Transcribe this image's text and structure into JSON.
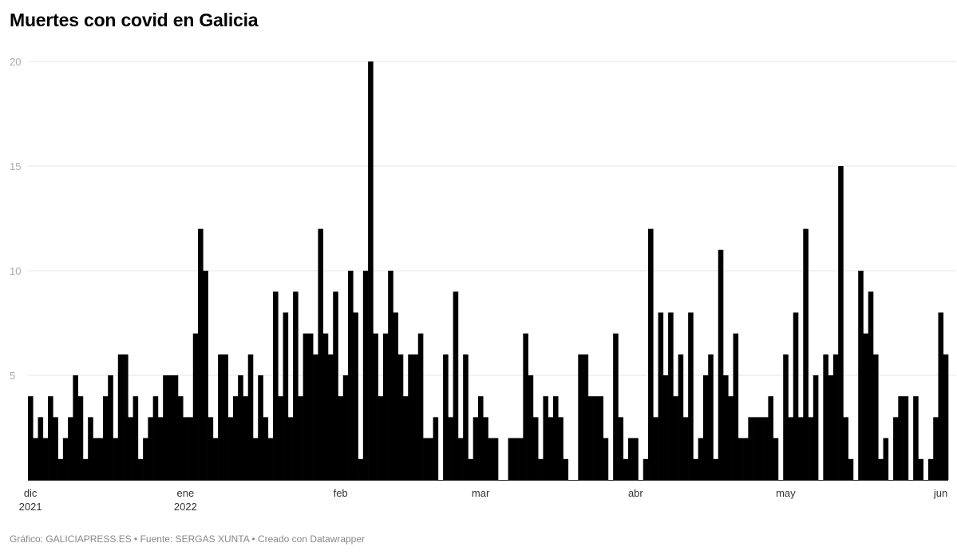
{
  "header": {
    "title": "Muertes con covid en Galicia"
  },
  "footer": {
    "text": "Gráfico: GALICIAPRESS.ES • Fuente: SERGAS XUNTA • Creado con Datawrapper"
  },
  "colors": {
    "bar": "#000000",
    "grid": "#e6e6e6",
    "axis": "#333333"
  },
  "chart_data": {
    "type": "bar",
    "title": "Muertes con covid en Galicia",
    "xlabel": "",
    "ylabel": "",
    "ylim": [
      0,
      20
    ],
    "grid": true,
    "yticks": [
      "5",
      "10",
      "15",
      "20"
    ],
    "xticks": [
      {
        "date": "2021-12-01",
        "label": "dic",
        "sublabel": "2021"
      },
      {
        "date": "2022-01-01",
        "label": "ene",
        "sublabel": "2022"
      },
      {
        "date": "2022-02-01",
        "label": "feb",
        "sublabel": ""
      },
      {
        "date": "2022-03-01",
        "label": "mar",
        "sublabel": ""
      },
      {
        "date": "2022-04-01",
        "label": "abr",
        "sublabel": ""
      },
      {
        "date": "2022-05-01",
        "label": "may",
        "sublabel": ""
      },
      {
        "date": "2022-06-01",
        "label": "jun",
        "sublabel": ""
      }
    ],
    "x": [
      "2021-12-01",
      "2021-12-02",
      "2021-12-03",
      "2021-12-04",
      "2021-12-05",
      "2021-12-06",
      "2021-12-07",
      "2021-12-08",
      "2021-12-09",
      "2021-12-10",
      "2021-12-11",
      "2021-12-12",
      "2021-12-13",
      "2021-12-14",
      "2021-12-15",
      "2021-12-16",
      "2021-12-17",
      "2021-12-18",
      "2021-12-19",
      "2021-12-20",
      "2021-12-21",
      "2021-12-22",
      "2021-12-23",
      "2021-12-24",
      "2021-12-25",
      "2021-12-26",
      "2021-12-27",
      "2021-12-28",
      "2021-12-29",
      "2021-12-30",
      "2021-12-31",
      "2022-01-01",
      "2022-01-02",
      "2022-01-03",
      "2022-01-04",
      "2022-01-05",
      "2022-01-06",
      "2022-01-07",
      "2022-01-08",
      "2022-01-09",
      "2022-01-10",
      "2022-01-11",
      "2022-01-12",
      "2022-01-13",
      "2022-01-14",
      "2022-01-15",
      "2022-01-16",
      "2022-01-17",
      "2022-01-18",
      "2022-01-19",
      "2022-01-20",
      "2022-01-21",
      "2022-01-22",
      "2022-01-23",
      "2022-01-24",
      "2022-01-25",
      "2022-01-26",
      "2022-01-27",
      "2022-01-28",
      "2022-01-29",
      "2022-01-30",
      "2022-01-31",
      "2022-02-01",
      "2022-02-02",
      "2022-02-03",
      "2022-02-04",
      "2022-02-05",
      "2022-02-06",
      "2022-02-07",
      "2022-02-08",
      "2022-02-09",
      "2022-02-10",
      "2022-02-11",
      "2022-02-12",
      "2022-02-13",
      "2022-02-14",
      "2022-02-15",
      "2022-02-16",
      "2022-02-17",
      "2022-02-18",
      "2022-02-19",
      "2022-02-20",
      "2022-02-21",
      "2022-02-22",
      "2022-02-23",
      "2022-02-24",
      "2022-02-25",
      "2022-02-26",
      "2022-02-27",
      "2022-02-28",
      "2022-03-01",
      "2022-03-02",
      "2022-03-03",
      "2022-03-04",
      "2022-03-05",
      "2022-03-06",
      "2022-03-07",
      "2022-03-08",
      "2022-03-09",
      "2022-03-10",
      "2022-03-11",
      "2022-03-12",
      "2022-03-13",
      "2022-03-14",
      "2022-03-15",
      "2022-03-16",
      "2022-03-17",
      "2022-03-18",
      "2022-03-19",
      "2022-03-20",
      "2022-03-21",
      "2022-03-22",
      "2022-03-23",
      "2022-03-24",
      "2022-03-25",
      "2022-03-26",
      "2022-03-27",
      "2022-03-28",
      "2022-03-29",
      "2022-03-30",
      "2022-03-31",
      "2022-04-01",
      "2022-04-02",
      "2022-04-03",
      "2022-04-04",
      "2022-04-05",
      "2022-04-06",
      "2022-04-07",
      "2022-04-08",
      "2022-04-09",
      "2022-04-10",
      "2022-04-11",
      "2022-04-12",
      "2022-04-13",
      "2022-04-14",
      "2022-04-15",
      "2022-04-16",
      "2022-04-17",
      "2022-04-18",
      "2022-04-19",
      "2022-04-20",
      "2022-04-21",
      "2022-04-22",
      "2022-04-23",
      "2022-04-24",
      "2022-04-25",
      "2022-04-26",
      "2022-04-27",
      "2022-04-28",
      "2022-04-29",
      "2022-04-30",
      "2022-05-01",
      "2022-05-02",
      "2022-05-03",
      "2022-05-04",
      "2022-05-05",
      "2022-05-06",
      "2022-05-07",
      "2022-05-08",
      "2022-05-09",
      "2022-05-10",
      "2022-05-11",
      "2022-05-12",
      "2022-05-13",
      "2022-05-14",
      "2022-05-15",
      "2022-05-16",
      "2022-05-17",
      "2022-05-18",
      "2022-05-19",
      "2022-05-20",
      "2022-05-21",
      "2022-05-22",
      "2022-05-23",
      "2022-05-24",
      "2022-05-25",
      "2022-05-26",
      "2022-05-27",
      "2022-05-28",
      "2022-05-29",
      "2022-05-30",
      "2022-05-31",
      "2022-06-01",
      "2022-06-02"
    ],
    "values": [
      4,
      2,
      3,
      2,
      4,
      3,
      1,
      2,
      3,
      5,
      4,
      1,
      3,
      2,
      2,
      4,
      5,
      2,
      6,
      6,
      3,
      4,
      1,
      2,
      3,
      4,
      3,
      5,
      5,
      5,
      4,
      3,
      3,
      7,
      12,
      10,
      3,
      2,
      6,
      6,
      3,
      4,
      5,
      4,
      6,
      2,
      5,
      3,
      2,
      9,
      4,
      8,
      3,
      9,
      4,
      7,
      7,
      6,
      12,
      7,
      6,
      9,
      4,
      5,
      10,
      8,
      1,
      10,
      20,
      7,
      4,
      7,
      10,
      8,
      6,
      4,
      6,
      6,
      7,
      2,
      2,
      3,
      0,
      6,
      3,
      9,
      2,
      6,
      1,
      3,
      4,
      3,
      2,
      2,
      0,
      0,
      2,
      2,
      2,
      7,
      5,
      3,
      1,
      4,
      3,
      4,
      3,
      1,
      0,
      0,
      6,
      6,
      4,
      4,
      4,
      2,
      0,
      7,
      3,
      1,
      2,
      2,
      0,
      1,
      12,
      3,
      8,
      5,
      8,
      4,
      6,
      3,
      8,
      1,
      2,
      5,
      6,
      1,
      11,
      5,
      4,
      7,
      2,
      2,
      3,
      3,
      3,
      3,
      4,
      2,
      0,
      6,
      3,
      8,
      3,
      12,
      3,
      5,
      0,
      6,
      5,
      6,
      15,
      3,
      1,
      0,
      10,
      7,
      9,
      6,
      1,
      2,
      0,
      3,
      4,
      4,
      0,
      4,
      1,
      0,
      1,
      3,
      8,
      6
    ]
  }
}
